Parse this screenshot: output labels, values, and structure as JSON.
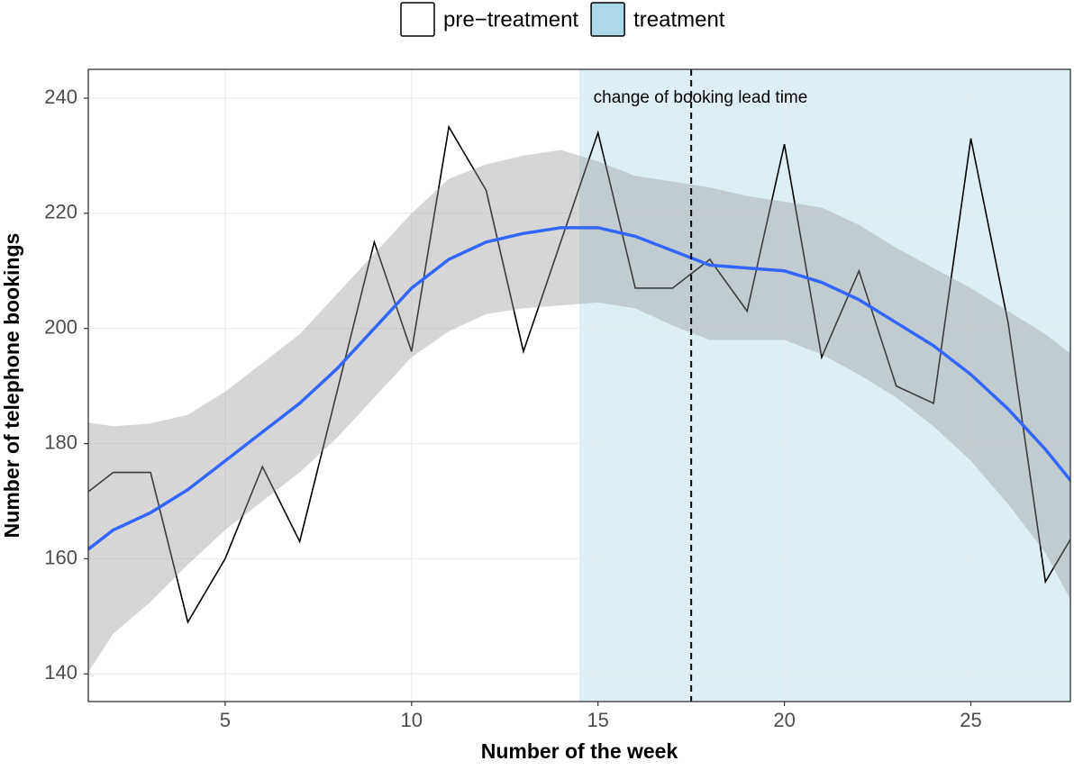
{
  "chart_data": {
    "type": "line",
    "x_label": "Number of the week",
    "y_label": "Number of telephone bookings",
    "xlim": [
      1.33,
      27.67
    ],
    "ylim": [
      135.2,
      245
    ],
    "xticks": [
      5,
      10,
      15,
      20,
      25
    ],
    "yticks": [
      140,
      160,
      180,
      200,
      220,
      240
    ],
    "grid": true,
    "legend_position": "top",
    "regions": [
      {
        "name": "pre−treatment",
        "color": "#ffffff",
        "xlim": [
          1.33,
          14.5
        ]
      },
      {
        "name": "treatment",
        "color": "#add8e6",
        "xlim": [
          14.5,
          27.67
        ]
      }
    ],
    "vline": {
      "x": 17.5,
      "color": "#000000"
    },
    "annotation": {
      "text": "change of booking lead time",
      "x": 17.75,
      "y": 240
    },
    "x": [
      1,
      2,
      3,
      4,
      5,
      6,
      7,
      8,
      9,
      10,
      11,
      12,
      13,
      14,
      15,
      16,
      17,
      18,
      19,
      20,
      21,
      22,
      23,
      24,
      25,
      26,
      27,
      28
    ],
    "observed": {
      "color": "#000000",
      "values": [
        170,
        175,
        175,
        149,
        160,
        176,
        163,
        189,
        215,
        196,
        235,
        224,
        196,
        215,
        234,
        207,
        207,
        212,
        203,
        232,
        195,
        210,
        190,
        187,
        233,
        201,
        156,
        167
      ]
    },
    "smooth": {
      "color": "#3366ff",
      "band_color": "#999999",
      "values": [
        160,
        165,
        168,
        172,
        177,
        182,
        187,
        193,
        200,
        207,
        212,
        215,
        216.5,
        217.5,
        217.5,
        216,
        213.5,
        211,
        210.5,
        210,
        208,
        205,
        201,
        197,
        192,
        186,
        179,
        171
      ],
      "upper": [
        184,
        183,
        183.5,
        185,
        189,
        194,
        199,
        206,
        213,
        220,
        226,
        228.5,
        230,
        231,
        229,
        226.5,
        225.5,
        224.5,
        223,
        222,
        221,
        218,
        214,
        210.5,
        207,
        203,
        199,
        194
      ],
      "lower": [
        137,
        147,
        152.5,
        159,
        165,
        170,
        175,
        181,
        188,
        195,
        199.5,
        202.5,
        203.5,
        204,
        204.5,
        203.5,
        200.5,
        198,
        198,
        198,
        195.5,
        192,
        188,
        183,
        177,
        169.5,
        161,
        149
      ]
    }
  }
}
